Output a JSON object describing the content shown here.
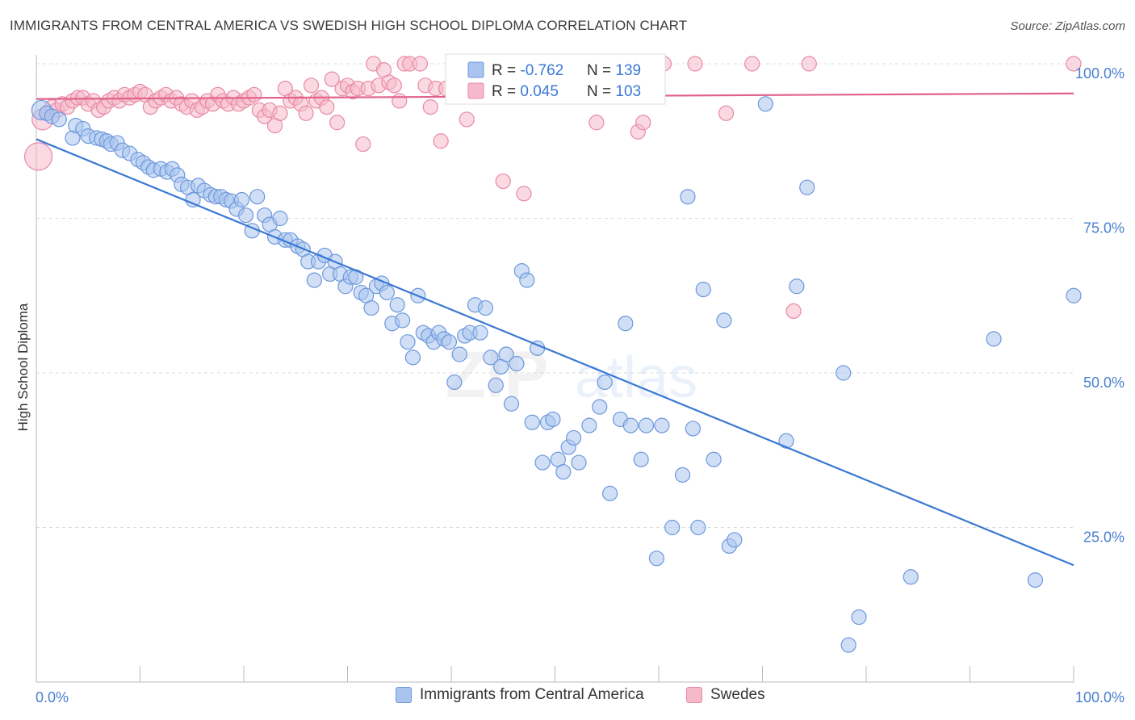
{
  "header": {
    "title": "IMMIGRANTS FROM CENTRAL AMERICA VS SWEDISH HIGH SCHOOL DIPLOMA CORRELATION CHART",
    "source": "Source: ZipAtlas.com"
  },
  "watermark": {
    "zip": "ZIP",
    "atlas": "atlas"
  },
  "colors": {
    "blue_fill": "#a9c4ee",
    "blue_stroke": "#6d98dc",
    "blue_line": "#3a78d4",
    "pink_fill": "#f6b9cb",
    "pink_stroke": "#e889a6",
    "pink_line": "#e0628c",
    "axis_text": "#4a7fd0",
    "grid": "#dddddd"
  },
  "legend": {
    "rows": [
      {
        "r_label": "R = ",
        "r_value": "-0.762",
        "n_label": "N = ",
        "n_value": "139"
      },
      {
        "r_label": "R = ",
        "r_value": "0.045",
        "n_label": "N = ",
        "n_value": "103"
      }
    ]
  },
  "bottom_legend": {
    "blue_label": "Immigrants from Central America",
    "pink_label": "Swedes"
  },
  "chart_data": {
    "type": "scatter",
    "title": "IMMIGRANTS FROM CENTRAL AMERICA VS SWEDISH HIGH SCHOOL DIPLOMA CORRELATION CHART",
    "xlabel": "",
    "ylabel": "High School Diploma",
    "xlim": [
      0,
      100
    ],
    "ylim": [
      0,
      100
    ],
    "x_tick_labels": [
      "0.0%",
      "100.0%"
    ],
    "y_tick_labels": [
      "25.0%",
      "50.0%",
      "75.0%",
      "100.0%"
    ],
    "y_ticks": [
      25,
      50,
      75,
      100
    ],
    "grid": true,
    "legend_placement": "top-center",
    "series": [
      {
        "name": "Immigrants from Central America",
        "color": "blue",
        "r": -0.762,
        "n": 139,
        "trend": {
          "x0": 0,
          "y0": 87.8,
          "x1": 100,
          "y1": 18.9
        },
        "points": [
          [
            0.5,
            92.5
          ],
          [
            1.0,
            92.0
          ],
          [
            1.5,
            91.5
          ],
          [
            2.2,
            91.0
          ],
          [
            3.5,
            88.0
          ],
          [
            3.8,
            90.0
          ],
          [
            4.5,
            89.5
          ],
          [
            5.0,
            88.3
          ],
          [
            5.8,
            88.0
          ],
          [
            6.3,
            87.8
          ],
          [
            6.8,
            87.5
          ],
          [
            7.2,
            87.0
          ],
          [
            7.8,
            87.2
          ],
          [
            8.3,
            86.0
          ],
          [
            9.0,
            85.5
          ],
          [
            9.8,
            84.5
          ],
          [
            10.3,
            84.0
          ],
          [
            10.8,
            83.3
          ],
          [
            11.3,
            82.8
          ],
          [
            12.0,
            83.0
          ],
          [
            12.6,
            82.5
          ],
          [
            13.1,
            83.0
          ],
          [
            13.6,
            82.0
          ],
          [
            14.0,
            80.5
          ],
          [
            14.6,
            80.0
          ],
          [
            15.1,
            78.0
          ],
          [
            15.6,
            80.3
          ],
          [
            16.2,
            79.5
          ],
          [
            16.8,
            78.8
          ],
          [
            17.3,
            78.5
          ],
          [
            17.8,
            78.5
          ],
          [
            18.3,
            78.0
          ],
          [
            18.8,
            77.8
          ],
          [
            19.3,
            76.5
          ],
          [
            19.8,
            78.0
          ],
          [
            20.2,
            75.5
          ],
          [
            20.8,
            73.0
          ],
          [
            21.3,
            78.5
          ],
          [
            22.0,
            75.5
          ],
          [
            22.5,
            74.0
          ],
          [
            23.0,
            72.0
          ],
          [
            23.5,
            75.0
          ],
          [
            24.0,
            71.5
          ],
          [
            24.5,
            71.5
          ],
          [
            25.2,
            70.5
          ],
          [
            25.7,
            70.0
          ],
          [
            26.2,
            68.0
          ],
          [
            26.8,
            65.0
          ],
          [
            27.2,
            68.0
          ],
          [
            27.8,
            69.0
          ],
          [
            28.3,
            66.0
          ],
          [
            28.8,
            68.0
          ],
          [
            29.3,
            66.0
          ],
          [
            29.8,
            64.0
          ],
          [
            30.3,
            65.5
          ],
          [
            30.8,
            65.5
          ],
          [
            31.3,
            63.0
          ],
          [
            31.8,
            62.5
          ],
          [
            32.3,
            60.5
          ],
          [
            32.8,
            64.0
          ],
          [
            33.3,
            64.5
          ],
          [
            33.8,
            63.0
          ],
          [
            34.3,
            58.0
          ],
          [
            34.8,
            61.0
          ],
          [
            35.3,
            58.5
          ],
          [
            35.8,
            55.0
          ],
          [
            36.3,
            52.5
          ],
          [
            36.8,
            62.5
          ],
          [
            37.3,
            56.5
          ],
          [
            37.8,
            56.0
          ],
          [
            38.3,
            55.0
          ],
          [
            38.8,
            56.5
          ],
          [
            39.3,
            55.5
          ],
          [
            39.8,
            55.0
          ],
          [
            40.3,
            48.5
          ],
          [
            40.8,
            53.0
          ],
          [
            41.3,
            56.0
          ],
          [
            41.8,
            56.5
          ],
          [
            42.3,
            61.0
          ],
          [
            42.8,
            56.5
          ],
          [
            43.3,
            60.5
          ],
          [
            43.8,
            52.5
          ],
          [
            44.3,
            48.0
          ],
          [
            44.8,
            51.0
          ],
          [
            45.3,
            53.0
          ],
          [
            45.8,
            45.0
          ],
          [
            46.3,
            51.5
          ],
          [
            46.8,
            66.5
          ],
          [
            47.3,
            65.0
          ],
          [
            47.8,
            42.0
          ],
          [
            48.3,
            54.0
          ],
          [
            48.8,
            35.5
          ],
          [
            49.3,
            42.0
          ],
          [
            49.8,
            42.5
          ],
          [
            50.3,
            36.0
          ],
          [
            50.8,
            34.0
          ],
          [
            51.3,
            38.0
          ],
          [
            51.8,
            39.5
          ],
          [
            52.3,
            35.5
          ],
          [
            53.3,
            41.5
          ],
          [
            54.3,
            44.5
          ],
          [
            54.8,
            48.5
          ],
          [
            55.3,
            30.5
          ],
          [
            56.3,
            42.5
          ],
          [
            56.8,
            58.0
          ],
          [
            57.3,
            41.5
          ],
          [
            58.3,
            36.0
          ],
          [
            58.8,
            41.5
          ],
          [
            59.8,
            20.0
          ],
          [
            60.3,
            41.5
          ],
          [
            61.3,
            25.0
          ],
          [
            62.3,
            33.5
          ],
          [
            62.8,
            78.5
          ],
          [
            63.3,
            41.0
          ],
          [
            63.8,
            25.0
          ],
          [
            64.3,
            63.5
          ],
          [
            65.3,
            36.0
          ],
          [
            66.3,
            58.5
          ],
          [
            66.8,
            22.0
          ],
          [
            67.3,
            23.0
          ],
          [
            70.3,
            93.5
          ],
          [
            72.3,
            39.0
          ],
          [
            73.3,
            64.0
          ],
          [
            74.3,
            80.0
          ],
          [
            77.8,
            50.0
          ],
          [
            78.3,
            6.0
          ],
          [
            79.3,
            10.5
          ],
          [
            84.3,
            17.0
          ],
          [
            92.3,
            55.5
          ],
          [
            96.3,
            16.5
          ],
          [
            100.0,
            62.5
          ]
        ]
      },
      {
        "name": "Swedes",
        "color": "pink",
        "r": 0.045,
        "n": 103,
        "trend": {
          "x0": 0,
          "y0": 94.3,
          "x1": 100,
          "y1": 95.2
        },
        "points": [
          [
            0.2,
            85.0
          ],
          [
            0.6,
            91.0
          ],
          [
            1.0,
            92.0
          ],
          [
            1.5,
            93.0
          ],
          [
            2.0,
            92.5
          ],
          [
            2.5,
            93.5
          ],
          [
            3.0,
            93.0
          ],
          [
            3.5,
            94.0
          ],
          [
            4.0,
            94.5
          ],
          [
            4.5,
            94.5
          ],
          [
            5.0,
            93.5
          ],
          [
            5.5,
            94.0
          ],
          [
            6.0,
            92.5
          ],
          [
            6.5,
            93.0
          ],
          [
            7.0,
            94.0
          ],
          [
            7.5,
            94.5
          ],
          [
            8.0,
            94.0
          ],
          [
            8.5,
            95.0
          ],
          [
            9.0,
            94.5
          ],
          [
            9.5,
            95.0
          ],
          [
            10.0,
            95.5
          ],
          [
            10.5,
            95.0
          ],
          [
            11.0,
            93.0
          ],
          [
            11.5,
            94.0
          ],
          [
            12.0,
            94.5
          ],
          [
            12.5,
            95.0
          ],
          [
            13.0,
            94.0
          ],
          [
            13.5,
            94.5
          ],
          [
            14.0,
            93.5
          ],
          [
            14.5,
            93.0
          ],
          [
            15.0,
            94.0
          ],
          [
            15.5,
            92.5
          ],
          [
            16.0,
            93.0
          ],
          [
            16.5,
            94.0
          ],
          [
            17.0,
            93.5
          ],
          [
            17.5,
            95.0
          ],
          [
            18.0,
            94.0
          ],
          [
            18.5,
            93.5
          ],
          [
            19.0,
            94.5
          ],
          [
            19.5,
            93.5
          ],
          [
            20.0,
            94.0
          ],
          [
            20.5,
            94.5
          ],
          [
            21.0,
            95.0
          ],
          [
            21.5,
            92.5
          ],
          [
            22.0,
            91.5
          ],
          [
            22.5,
            92.5
          ],
          [
            23.0,
            90.0
          ],
          [
            23.5,
            92.0
          ],
          [
            24.0,
            96.0
          ],
          [
            24.5,
            94.0
          ],
          [
            25.0,
            94.5
          ],
          [
            25.5,
            93.5
          ],
          [
            26.0,
            92.0
          ],
          [
            26.5,
            96.5
          ],
          [
            27.0,
            94.0
          ],
          [
            27.5,
            94.5
          ],
          [
            28.0,
            93.0
          ],
          [
            28.5,
            97.5
          ],
          [
            29.0,
            90.5
          ],
          [
            29.5,
            96.0
          ],
          [
            30.0,
            96.5
          ],
          [
            30.5,
            95.5
          ],
          [
            31.0,
            96.0
          ],
          [
            31.5,
            87.0
          ],
          [
            32.0,
            96.0
          ],
          [
            32.5,
            100.0
          ],
          [
            33.0,
            96.5
          ],
          [
            33.5,
            99.0
          ],
          [
            34.0,
            97.0
          ],
          [
            34.5,
            96.5
          ],
          [
            35.0,
            94.0
          ],
          [
            35.5,
            100.0
          ],
          [
            36.0,
            100.0
          ],
          [
            37.0,
            100.0
          ],
          [
            37.5,
            96.5
          ],
          [
            38.0,
            93.0
          ],
          [
            38.5,
            96.0
          ],
          [
            39.0,
            87.5
          ],
          [
            39.5,
            96.0
          ],
          [
            40.5,
            100.0
          ],
          [
            41.0,
            96.5
          ],
          [
            41.5,
            91.0
          ],
          [
            42.0,
            97.0
          ],
          [
            42.5,
            100.0
          ],
          [
            44.5,
            100.0
          ],
          [
            45.0,
            81.0
          ],
          [
            47.0,
            79.0
          ],
          [
            51.0,
            100.0
          ],
          [
            54.0,
            90.5
          ],
          [
            55.5,
            100.0
          ],
          [
            56.5,
            100.0
          ],
          [
            58.0,
            89.0
          ],
          [
            58.5,
            90.5
          ],
          [
            60.5,
            100.0
          ],
          [
            63.5,
            100.0
          ],
          [
            66.5,
            92.0
          ],
          [
            69.0,
            100.0
          ],
          [
            73.0,
            60.0
          ],
          [
            74.5,
            100.0
          ],
          [
            100.0,
            100.0
          ]
        ]
      }
    ]
  }
}
